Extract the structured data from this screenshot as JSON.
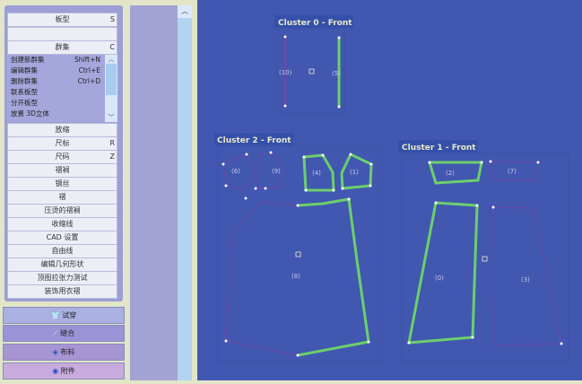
{
  "panel": {
    "rows_top": [
      {
        "label": "板型",
        "shortcut": "S"
      },
      {
        "label": "",
        "shortcut": ""
      },
      {
        "label": "群集",
        "shortcut": "C"
      }
    ],
    "cluster_menu": [
      {
        "label": "创建新群集",
        "shortcut": "Shift+N"
      },
      {
        "label": "编辑群集",
        "shortcut": "Ctrl+E"
      },
      {
        "label": "删除群集",
        "shortcut": "Ctrl+D"
      },
      {
        "label": "联系板型",
        "shortcut": ""
      },
      {
        "label": "分开板型",
        "shortcut": ""
      },
      {
        "label": "放置 3D立体",
        "shortcut": ""
      }
    ],
    "rows": [
      {
        "label": "放缩",
        "shortcut": ""
      },
      {
        "label": "尺标",
        "shortcut": "R"
      },
      {
        "label": "尺码",
        "shortcut": "Z"
      },
      {
        "label": "褶裥",
        "shortcut": ""
      },
      {
        "label": "钢丝",
        "shortcut": ""
      },
      {
        "label": "褶",
        "shortcut": ""
      },
      {
        "label": "压烫的褶裥",
        "shortcut": ""
      },
      {
        "label": "收缩线",
        "shortcut": ""
      },
      {
        "label": "CAD 设置",
        "shortcut": ""
      },
      {
        "label": "自由线",
        "shortcut": ""
      },
      {
        "label": "编辑几何形状",
        "shortcut": ""
      },
      {
        "label": "顶图拉张力测试",
        "shortcut": ""
      },
      {
        "label": "装饰用衣褶",
        "shortcut": ""
      }
    ],
    "bottom": [
      {
        "label": "试穿",
        "icon": "shirt-icon",
        "color": "#abb0e2"
      },
      {
        "label": "缝合",
        "icon": "needle-icon",
        "color": "#9a94d6"
      },
      {
        "label": "布料",
        "icon": "fabric-icon",
        "color": "#a794d2"
      },
      {
        "label": "附件",
        "icon": "attachment-icon",
        "color": "#c9aadc"
      }
    ]
  },
  "canvas": {
    "clusters": [
      {
        "title": "Cluster 0 - Front"
      },
      {
        "title": "Cluster 2 - Front"
      },
      {
        "title": "Cluster 1 - Front"
      }
    ],
    "pieces": {
      "p10": "(10)",
      "p5": "(5)",
      "p6": "(6)",
      "p9": "(9)",
      "p4": "(4)",
      "p1": "(1)",
      "p8": "(8)",
      "p2": "(2)",
      "p7": "(7)",
      "p0": "(0)",
      "p3": "(3)"
    },
    "colors": {
      "background": "#4257b0",
      "selected_seam": "#6ccf6c",
      "unselected_seam": "#6a4aa8"
    }
  }
}
